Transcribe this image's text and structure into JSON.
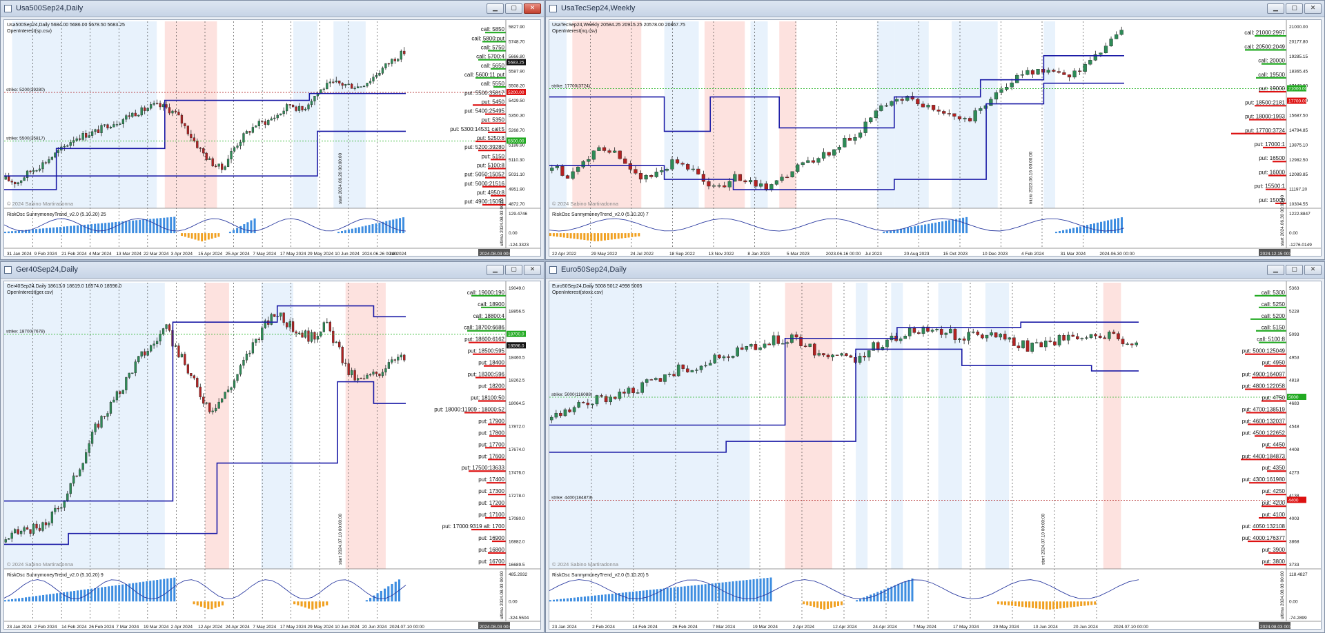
{
  "windows": [
    {
      "id": "us500",
      "title": "Usa500Sep24,Daily",
      "header_line": "Usa500Sep24,Daily  5684.00 5686.00 5678.50 5683.25",
      "oi_label": "OpenInterest(sp.csv)",
      "copyright": "© 2024 Sabino Martiradonna",
      "osc_label": "RiskOsc  SunnymoneyTrend_v2.0  (5.10.20)  25",
      "strike_labels": [
        "strike: 5500(35817)",
        "strike: 5200(39280)"
      ],
      "price_ticks": [
        "5827.90",
        "5748.70",
        "5666.80",
        "5587.90",
        "5508.20",
        "5429.50",
        "5350.30",
        "5268.70",
        "5188.90",
        "5110.30",
        "5031.10",
        "4951.90",
        "4872.70"
      ],
      "current_price": "5683.25",
      "green_tag": "5500.00",
      "red_tag": "5200.00",
      "osc_ticks": [
        "129.4746",
        "0.00",
        "-124.3323"
      ],
      "date_ticks": [
        "31 Jan 2024",
        "9 Feb 2024",
        "21 Feb 2024",
        "4 Mar 2024",
        "13 Mar 2024",
        "22 Mar 2024",
        "3 Apr 2024",
        "15 Apr 2024",
        "25 Apr 2024",
        "7 May 2024",
        "17 May 2024",
        "29 May 2024",
        "10 Jun 2024",
        "2024.06.26 00:00",
        "Jul 2024"
      ],
      "right_tag": "2024.08.03 00:00",
      "vtext_start": "start 2024.06.26 00:00:00",
      "vtext_last": "ultima 2024.08.03 00:00",
      "oi_items": [
        "call: 5850",
        "call: 5800:put",
        "call: 5750",
        "call: 5700:4",
        "call: 5650",
        "call: 5600:11 put",
        "call: 5550",
        "put: 5500:35817",
        "put: 5450",
        "put: 5400:25495",
        "put: 5350",
        "put: 5300:14531 call:5",
        "put: 5250:8",
        "put: 5200:39280",
        "put: 5150",
        "put: 5100:8",
        "put: 5050:15052",
        "put: 5000:21516",
        "put: 4950:8",
        "put: 4900:15051"
      ]
    },
    {
      "id": "ustec",
      "title": "UsaTecSep24,Weekly",
      "header_line": "UsaTecSep24,Weekly  20584.25 20915.25 20578.00 20867.75",
      "oi_label": "OpenInterest(nq.csv)",
      "copyright": "© 2024 Sabino Martiradonna",
      "osc_label": "RiskOsc  SunnymoneyTrend_v2.0  (5.10.20)  7",
      "strike_labels": [
        "strike: 17700(3724)"
      ],
      "price_ticks": [
        "21000.00",
        "20177.80",
        "19285.15",
        "18365.45",
        "17442.80",
        "16580.50",
        "15687.50",
        "14794.85",
        "13875.10",
        "12982.50",
        "12089.85",
        "11197.20",
        "10304.55"
      ],
      "current_price": "",
      "green_tag": "21000.00",
      "red_tag": "17700.00",
      "osc_ticks": [
        "1222.8847",
        "0.00",
        "-1276.0149"
      ],
      "date_ticks": [
        "22 Apr 2022",
        "29 May 2022",
        "24 Jul 2022",
        "18 Sep 2022",
        "13 Nov 2022",
        "8 Jan 2023",
        "5 Mar 2023",
        "2023.06.16 00:00",
        "Jul 2023",
        "20 Aug 2023",
        "15 Oct 2023",
        "10 Dec 2023",
        "4 Feb 2024",
        "31 Mar 2024",
        "2024.06.30 00:00"
      ],
      "right_tag": "2024.12.15 00:00",
      "vtext_start": "inizio 2023.06.16 00:00:00",
      "vtext_last": "start 2024.06.30 00:00:00",
      "oi_items": [
        "call: 21000:2997",
        "call: 20500:2049",
        "call: 20000",
        "call: 19500",
        "put: 19000",
        "put: 18500:2181",
        "put: 18000:1993",
        "put: 17700:3724",
        "put: 17000:1",
        "put: 16500",
        "put: 16000",
        "put: 15500:1",
        "put: 15000"
      ]
    },
    {
      "id": "ger40",
      "title": "Ger40Sep24,Daily",
      "header_line": "Ger40Sep24,Daily  18613.0 18619.0 18574.0 18596.0",
      "oi_label": "OpenInterest(ger.csv)",
      "copyright": "© 2024 Sabino Martiradonna",
      "osc_label": "RiskOsc  SunnymoneyTrend_v2.0  (5.10.20)  9",
      "strike_labels": [
        "strike: 18700(7678)"
      ],
      "price_ticks": [
        "19049.0",
        "18856.5",
        "18658.5",
        "18460.5",
        "18262.5",
        "18064.5",
        "17872.0",
        "17674.0",
        "17476.0",
        "17278.0",
        "17080.0",
        "16882.0",
        "16689.5"
      ],
      "current_price": "18596.0",
      "green_tag": "18700.0",
      "red_tag": "",
      "osc_ticks": [
        "485.2932",
        "0.00",
        "-324.5504"
      ],
      "date_ticks": [
        "23 Jan 2024",
        "2 Feb 2024",
        "14 Feb 2024",
        "26 Feb 2024",
        "7 Mar 2024",
        "19 Mar 2024",
        "2 Apr 2024",
        "12 Apr 2024",
        "24 Apr 2024",
        "7 May 2024",
        "17 May 2024",
        "29 May 2024",
        "10 Jun 2024",
        "20 Jun 2024",
        "2024.07.10 00:00"
      ],
      "right_tag": "2024.08.03 00:00",
      "vtext_start": "start 2024.07.10 00:00:00",
      "vtext_last": "ultima 2024.08.03 00:00",
      "oi_items": [
        "call: 19000:190",
        "call: 18900",
        "call: 18800:4",
        "call: 18700:6686",
        "put: 18600:6162",
        "put: 18500:595",
        "put: 18400",
        "put: 18300:596",
        "put: 18200",
        "put: 18100:50",
        "put: 18000:11909 : 18000:52",
        "put: 17900",
        "put: 17800",
        "put: 17700",
        "put: 17600",
        "put: 17500:13633",
        "put: 17400",
        "put: 17300",
        "put: 17200",
        "put: 17100",
        "put: 17000:9319 all: 1700",
        "put: 16900",
        "put: 16800",
        "put: 16700"
      ]
    },
    {
      "id": "euro50",
      "title": "Euro50Sep24,Daily",
      "header_line": "Euro50Sep24,Daily  5008 5012 4998 5005",
      "oi_label": "OpenInterest(stoxx.csv)",
      "copyright": "© 2024 Sabino Martiradonna",
      "osc_label": "RiskOsc  SunnymoneyTrend_v2.0  (5.10.20)  5",
      "strike_labels": [
        "strike: 5000(116088)",
        "strike: 4400(184873)"
      ],
      "price_ticks": [
        "5363",
        "5228",
        "5093",
        "4953",
        "4818",
        "4683",
        "4548",
        "4408",
        "4273",
        "4138",
        "4003",
        "3868",
        "3733"
      ],
      "current_price": "",
      "green_tag": "5000",
      "red_tag": "4400",
      "osc_ticks": [
        "118.4827",
        "0.00",
        "-74.2899"
      ],
      "date_ticks": [
        "23 Jan 2024",
        "2 Feb 2024",
        "14 Feb 2024",
        "26 Feb 2024",
        "7 Mar 2024",
        "19 Mar 2024",
        "2 Apr 2024",
        "12 Apr 2024",
        "24 Apr 2024",
        "7 May 2024",
        "17 May 2024",
        "29 May 2024",
        "10 Jun 2024",
        "20 Jun 2024",
        "2024.07.10 00:00"
      ],
      "right_tag": "2024.08.03 00:00",
      "vtext_start": "start 2024.07.10 00:00:00",
      "vtext_last": "ultima 2024.08.03 00:00",
      "oi_items": [
        "call: 5300",
        "call: 5250",
        "call: 5200",
        "call: 5150",
        "call: 5100:8",
        "put: 5000:125049",
        "put: 4950",
        "put: 4900:164097",
        "put: 4800:122058",
        "put: 4750",
        "put: 4700:138519",
        "put: 4600:132037",
        "put: 4500:122652",
        "put: 4450",
        "put: 4400:184873",
        "put: 4350",
        "put: 4300:161980",
        "put: 4250",
        "put: 4200",
        "put: 4100",
        "put: 4050:132108",
        "put: 4000:176377",
        "put: 3900",
        "put: 3800"
      ]
    }
  ],
  "colors": {
    "bull": "#2e8b57",
    "bear": "#b22222",
    "level_line": "#1a1aa6",
    "green_bar": "#22aa22",
    "red_bar": "#dd1111",
    "osc_blue": "#3d8de0",
    "osc_orange": "#f0a020",
    "osc_line_blue": "#2a3aa0",
    "osc_line_red": "#c03030",
    "zone_blue": "#e8f2fc",
    "zone_pink": "#fde2df"
  }
}
